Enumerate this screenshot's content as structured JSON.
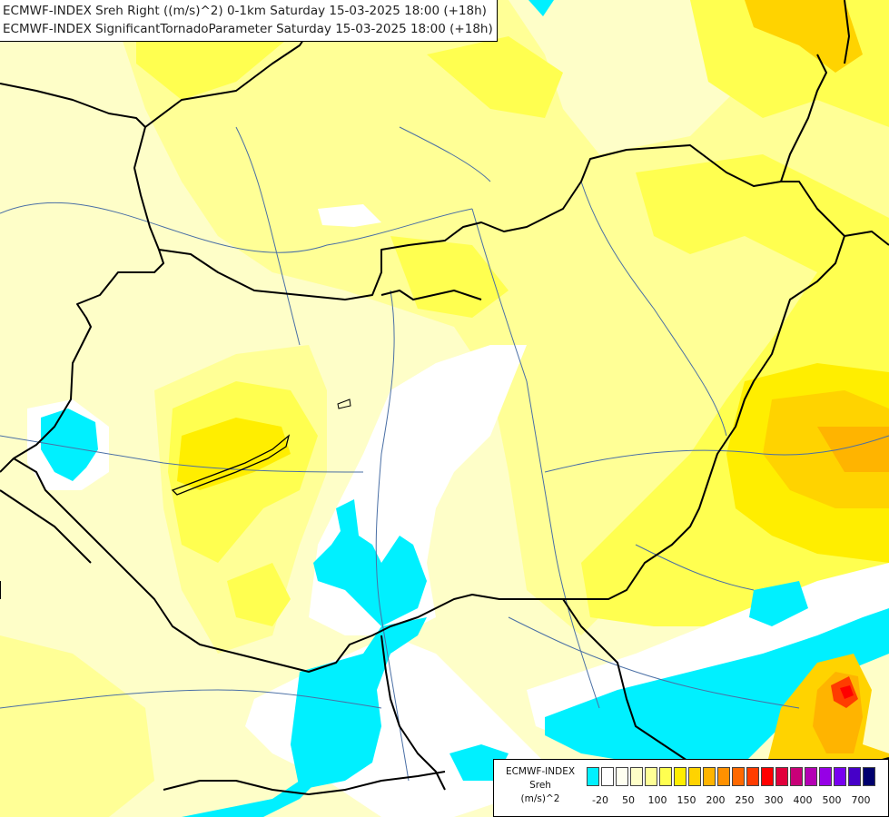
{
  "header": {
    "line1": "ECMWF-INDEX Sreh Right ((m/s)^2) 0-1km Saturday 15-03-2025 18:00 (+18h)",
    "line2": "ECMWF-INDEX SignificantTornadoParameter Saturday 15-03-2025 18:00 (+18h)"
  },
  "legend": {
    "title1": "ECMWF-INDEX",
    "title2": "Sreh",
    "title3": "(m/s)^2",
    "colors": [
      "#00f0ff",
      "#ffffff",
      "#fffff0",
      "#fefec8",
      "#ffff96",
      "#ffff50",
      "#ffee00",
      "#ffd300",
      "#ffb400",
      "#ff9100",
      "#ff6900",
      "#ff3c00",
      "#ff0000",
      "#e1003c",
      "#c80078",
      "#b400b4",
      "#9600e6",
      "#7800f0",
      "#4600c8",
      "#00006e"
    ],
    "ticks": [
      "-20",
      "50",
      "100",
      "150",
      "200",
      "250",
      "300",
      "400",
      "500",
      "700"
    ]
  },
  "map_colors": {
    "base": "#fefec8",
    "light_yellow": "#ffff96",
    "yellow": "#ffff50",
    "gold": "#ffee00",
    "orange": "#ffd300",
    "dark_orange": "#ffb400",
    "red": "#ff3c00",
    "white": "#ffffff",
    "cyan": "#00f0ff",
    "border": "#000000",
    "river": "#4a6fa5"
  }
}
